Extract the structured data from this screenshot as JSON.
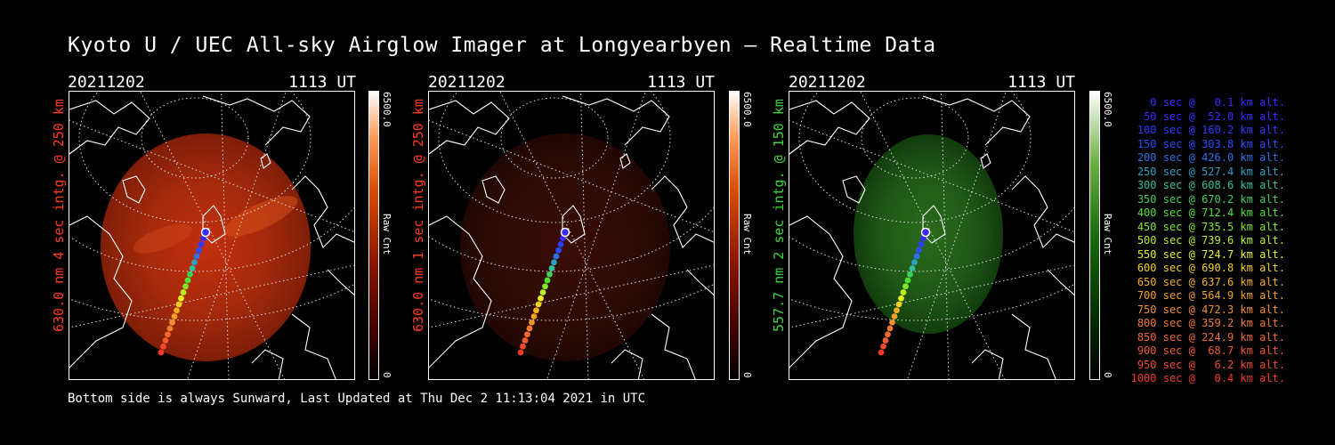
{
  "title": "Kyoto U / UEC All-sky Airglow Imager at Longyearbyen — Realtime Data",
  "footer": "Bottom side is always Sunward, Last Updated at Thu Dec  2 11:13:04 2021 in UTC",
  "panels": [
    {
      "date": "20211202",
      "time": "1113 UT",
      "side_label": "630.0 nm 4 sec intg. @ 250 km",
      "label_color": "#ff3b1f",
      "cbar_max": "6500.0",
      "cbar_min": "0",
      "cbar_unit": "Raw Cnt",
      "colormap": "red",
      "brightness": "high"
    },
    {
      "date": "20211202",
      "time": "1113 UT",
      "side_label": "630.0 nm 1 sec intg. @ 250 km",
      "label_color": "#ff3b1f",
      "cbar_max": "6500.0",
      "cbar_min": "0",
      "cbar_unit": "Raw Cnt",
      "colormap": "red",
      "brightness": "low"
    },
    {
      "date": "20211202",
      "time": "1113 UT",
      "side_label": "557.7 nm 2 sec intg. @ 150 km",
      "label_color": "#3fd23f",
      "cbar_max": "6500.0",
      "cbar_min": "0",
      "cbar_unit": "Raw Cnt",
      "colormap": "green",
      "brightness": "low"
    }
  ],
  "legend": [
    {
      "text": "0 sec @   0.1 km alt.",
      "color": "#3a2bff"
    },
    {
      "text": "50 sec @  52.0 km alt.",
      "color": "#3a2bff"
    },
    {
      "text": "100 sec @ 160.2 km alt.",
      "color": "#2f3cff"
    },
    {
      "text": "150 sec @ 303.8 km alt.",
      "color": "#2a4dff"
    },
    {
      "text": "200 sec @ 426.0 km alt.",
      "color": "#2a72e8"
    },
    {
      "text": "250 sec @ 527.4 km alt.",
      "color": "#2aa0c8"
    },
    {
      "text": "300 sec @ 608.6 km alt.",
      "color": "#2fc0a0"
    },
    {
      "text": "350 sec @ 670.2 km alt.",
      "color": "#3fd060"
    },
    {
      "text": "400 sec @ 712.4 km alt.",
      "color": "#50e030"
    },
    {
      "text": "450 sec @ 735.5 km alt.",
      "color": "#80e828"
    },
    {
      "text": "500 sec @ 739.6 km alt.",
      "color": "#b8f020"
    },
    {
      "text": "550 sec @ 724.7 km alt.",
      "color": "#e8f020"
    },
    {
      "text": "600 sec @ 690.8 km alt.",
      "color": "#f0d020"
    },
    {
      "text": "650 sec @ 637.6 km alt.",
      "color": "#f0b020"
    },
    {
      "text": "700 sec @ 564.9 km alt.",
      "color": "#f0a028"
    },
    {
      "text": "750 sec @ 472.3 km alt.",
      "color": "#f09030"
    },
    {
      "text": "800 sec @ 359.2 km alt.",
      "color": "#f07a30"
    },
    {
      "text": "850 sec @ 224.9 km alt.",
      "color": "#f06a30"
    },
    {
      "text": "900 sec @  68.7 km alt.",
      "color": "#f05a30"
    },
    {
      "text": "950 sec @   6.2 km alt.",
      "color": "#f04a30"
    },
    {
      "text": "1000 sec @   0.4 km alt.",
      "color": "#f03a2a"
    }
  ]
}
